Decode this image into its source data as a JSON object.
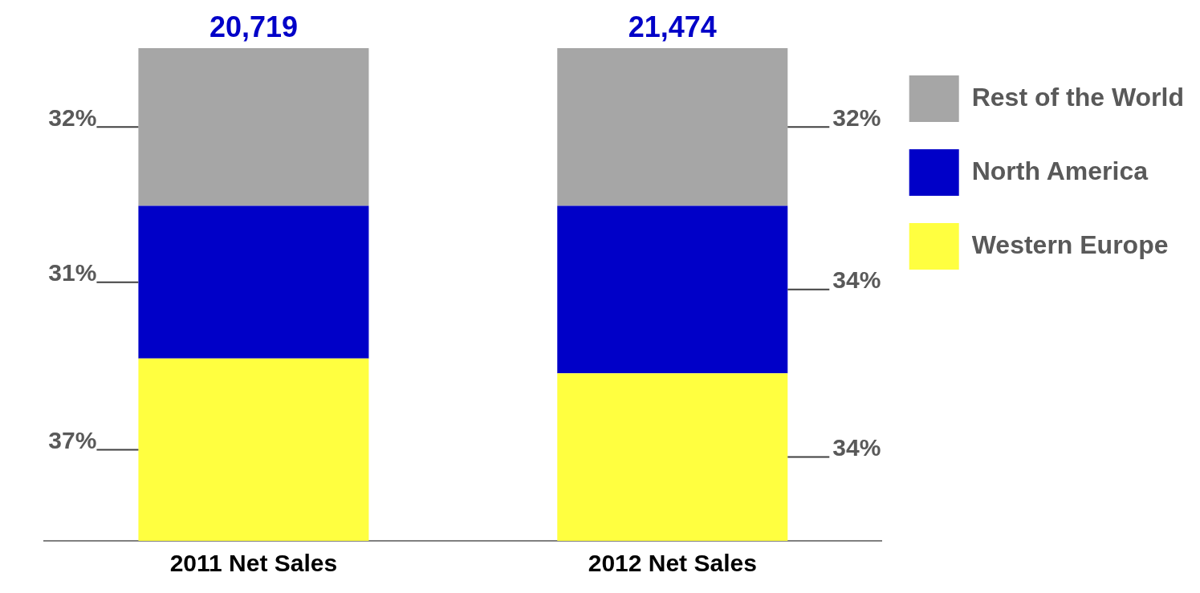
{
  "chart_data": {
    "type": "bar",
    "stacked": true,
    "categories": [
      "2011 Net Sales",
      "2012 Net Sales"
    ],
    "series": [
      {
        "name": "Western Europe",
        "color": "#ffff40",
        "values": [
          37,
          34
        ],
        "value_labels": [
          "37%",
          "34%"
        ]
      },
      {
        "name": "North America",
        "color": "#0000c8",
        "values": [
          31,
          34
        ],
        "value_labels": [
          "31%",
          "34%"
        ]
      },
      {
        "name": "Rest of the World",
        "color": "#a6a6a6",
        "values": [
          32,
          32
        ],
        "value_labels": [
          "32%",
          "32%"
        ]
      }
    ],
    "annotations": [
      {
        "text": "20,719",
        "x": "2011 Net Sales",
        "y": 100
      },
      {
        "text": "21,474",
        "x": "2012 Net Sales",
        "y": 100
      }
    ],
    "legend": "right",
    "grid": false,
    "tick_labels": "x"
  }
}
